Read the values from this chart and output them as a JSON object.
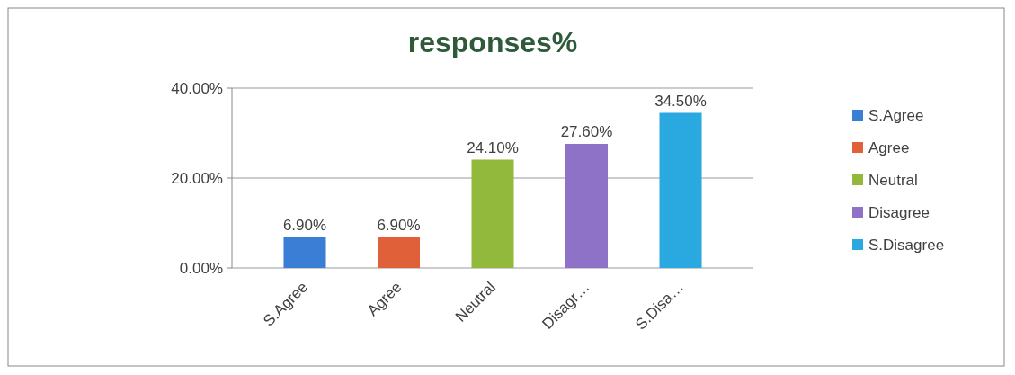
{
  "chart_data": {
    "type": "bar",
    "title": "responses%",
    "categories": [
      "S.Agree",
      "Agree",
      "Neutral",
      "Disagr…",
      "S.Disa…"
    ],
    "series": [
      {
        "name": "S.Agree",
        "color": "#3a7fd5",
        "values": [
          6.9,
          null,
          null,
          null,
          null
        ],
        "value_labels": [
          "6.90%",
          null,
          null,
          null,
          null
        ]
      },
      {
        "name": "Agree",
        "color": "#e0603a",
        "values": [
          null,
          6.9,
          null,
          null,
          null
        ],
        "value_labels": [
          null,
          "6.90%",
          null,
          null,
          null
        ]
      },
      {
        "name": "Neutral",
        "color": "#92b83c",
        "values": [
          null,
          null,
          24.1,
          null,
          null
        ],
        "value_labels": [
          null,
          null,
          "24.10%",
          null,
          null
        ]
      },
      {
        "name": "Disagree",
        "color": "#8e72c8",
        "values": [
          null,
          null,
          null,
          27.6,
          null
        ],
        "value_labels": [
          null,
          null,
          null,
          "27.60%",
          null
        ]
      },
      {
        "name": "S.Disagree",
        "color": "#2aa8e0",
        "values": [
          null,
          null,
          null,
          null,
          34.5
        ],
        "value_labels": [
          null,
          null,
          null,
          null,
          "34.50%"
        ]
      }
    ],
    "ylim": [
      0,
      40
    ],
    "yticks": [
      {
        "value": 0,
        "label": "0.00%"
      },
      {
        "value": 20,
        "label": "20.00%"
      },
      {
        "value": 40,
        "label": "40.00%"
      }
    ],
    "grid": true,
    "legend": "right"
  }
}
